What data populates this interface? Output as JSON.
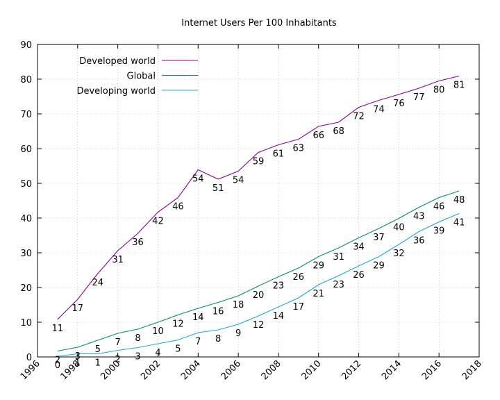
{
  "chart_data": {
    "type": "line",
    "title": "Internet Users Per 100 Inhabitants",
    "xlabel": "",
    "ylabel": "",
    "xlim": [
      1996,
      2018
    ],
    "ylim": [
      0,
      90
    ],
    "xticks": [
      1996,
      1998,
      2000,
      2002,
      2004,
      2006,
      2008,
      2010,
      2012,
      2014,
      2016,
      2018
    ],
    "yticks": [
      0,
      10,
      20,
      30,
      40,
      50,
      60,
      70,
      80,
      90
    ],
    "grid": true,
    "legend_position": "top-left",
    "x": [
      1997,
      1998,
      1999,
      2000,
      2001,
      2002,
      2003,
      2004,
      2005,
      2006,
      2007,
      2008,
      2009,
      2010,
      2011,
      2012,
      2013,
      2014,
      2015,
      2016,
      2017
    ],
    "series": [
      {
        "name": "Developed world",
        "color": "#8b008b",
        "values": [
          10.8,
          16.6,
          24.0,
          30.6,
          35.6,
          41.7,
          45.9,
          53.9,
          51.2,
          53.5,
          58.9,
          61.1,
          62.7,
          66.4,
          67.6,
          71.9,
          73.9,
          75.6,
          77.4,
          79.5,
          80.9
        ],
        "labels": [
          "11",
          "17",
          "24",
          "31",
          "36",
          "42",
          "46",
          "54",
          "51",
          "54",
          "59",
          "61",
          "63",
          "66",
          "68",
          "72",
          "74",
          "76",
          "77",
          "80",
          "81"
        ]
      },
      {
        "name": "Global",
        "color": "#008b6b",
        "values": [
          1.7,
          2.8,
          4.8,
          6.8,
          8.0,
          10.0,
          12.1,
          14.0,
          15.7,
          17.6,
          20.4,
          23.1,
          25.6,
          28.9,
          31.4,
          34.3,
          37.0,
          39.9,
          43.1,
          45.9,
          47.8
        ],
        "labels": [
          "2",
          "3",
          "5",
          "7",
          "8",
          "10",
          "12",
          "14",
          "16",
          "18",
          "20",
          "23",
          "26",
          "29",
          "31",
          "34",
          "37",
          "40",
          "43",
          "46",
          "48"
        ]
      },
      {
        "name": "Developing world",
        "color": "#1ea5d8",
        "values": [
          0.2,
          0.9,
          0.9,
          1.9,
          2.7,
          3.8,
          4.9,
          7.0,
          7.8,
          9.4,
          11.8,
          14.4,
          17.0,
          20.8,
          23.4,
          26.2,
          28.9,
          32.4,
          36.1,
          38.9,
          41.3
        ],
        "labels": [
          "0",
          "1",
          "1",
          "2",
          "3",
          "4",
          "5",
          "7",
          "8",
          "9",
          "12",
          "14",
          "17",
          "21",
          "23",
          "26",
          "29",
          "32",
          "36",
          "39",
          "41"
        ]
      }
    ]
  }
}
